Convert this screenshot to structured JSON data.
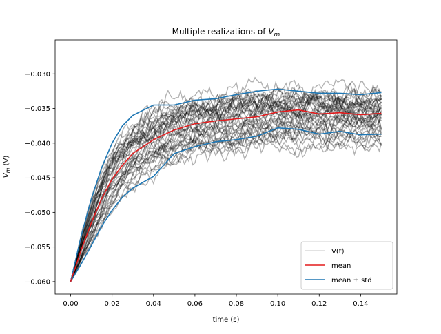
{
  "chart_data": {
    "type": "line",
    "title": "Multiple realizations of V_m",
    "title_parts": {
      "prefix": "Multiple realizations of ",
      "var": "V",
      "sub": "m"
    },
    "xlabel": "time (s)",
    "ylabel": "V_m (V)",
    "ylabel_parts": {
      "var": "V",
      "sub": "m",
      "suffix": " (V)"
    },
    "xlim": [
      -0.0075,
      0.1575
    ],
    "ylim": [
      -0.0618,
      -0.0251
    ],
    "xticks": [
      0.0,
      0.02,
      0.04,
      0.06,
      0.08,
      0.1,
      0.12,
      0.14
    ],
    "xtick_labels": [
      "0.00",
      "0.02",
      "0.04",
      "0.06",
      "0.08",
      "0.10",
      "0.12",
      "0.14"
    ],
    "yticks": [
      -0.06,
      -0.055,
      -0.05,
      -0.045,
      -0.04,
      -0.035,
      -0.03
    ],
    "ytick_labels": [
      "−0.060",
      "−0.055",
      "−0.050",
      "−0.045",
      "−0.040",
      "−0.035",
      "−0.030"
    ],
    "grid": false,
    "legend_position": "lower-right",
    "legend": [
      {
        "label": "V(t)",
        "color": "#000000",
        "alpha": 0.15
      },
      {
        "label": "mean",
        "color": "#e31a1c",
        "alpha": 1
      },
      {
        "label": "mean ± std",
        "color": "#1f77b4",
        "alpha": 1
      }
    ],
    "realizations": {
      "count": 40,
      "color": "#000000",
      "alpha": 0.3,
      "x_range": [
        0.0,
        0.15
      ],
      "start_value": -0.06,
      "level_spread": 0.0035,
      "noise_amplitude": 0.0009
    },
    "series": [
      {
        "name": "mean",
        "color": "#e31a1c",
        "x": [
          0.0,
          0.005,
          0.01,
          0.015,
          0.02,
          0.025,
          0.03,
          0.04,
          0.05,
          0.06,
          0.07,
          0.08,
          0.09,
          0.1,
          0.11,
          0.12,
          0.13,
          0.14,
          0.15
        ],
        "values": [
          -0.06,
          -0.0555,
          -0.0515,
          -0.048,
          -0.0452,
          -0.0432,
          -0.0415,
          -0.0395,
          -0.0381,
          -0.0372,
          -0.0368,
          -0.0365,
          -0.0362,
          -0.0355,
          -0.0352,
          -0.0358,
          -0.0356,
          -0.0359,
          -0.0357
        ]
      },
      {
        "name": "mean + std",
        "color": "#1f77b4",
        "x": [
          0.0,
          0.005,
          0.01,
          0.015,
          0.02,
          0.025,
          0.03,
          0.04,
          0.05,
          0.06,
          0.07,
          0.08,
          0.09,
          0.1,
          0.11,
          0.12,
          0.13,
          0.14,
          0.15
        ],
        "values": [
          -0.06,
          -0.0535,
          -0.048,
          -0.0435,
          -0.04,
          -0.0375,
          -0.036,
          -0.0345,
          -0.0345,
          -0.0338,
          -0.0336,
          -0.033,
          -0.0325,
          -0.0322,
          -0.0325,
          -0.0328,
          -0.0328,
          -0.033,
          -0.0327
        ]
      },
      {
        "name": "mean - std",
        "color": "#1f77b4",
        "x": [
          0.0,
          0.005,
          0.01,
          0.015,
          0.02,
          0.025,
          0.03,
          0.04,
          0.05,
          0.06,
          0.07,
          0.08,
          0.09,
          0.1,
          0.11,
          0.12,
          0.13,
          0.14,
          0.15
        ],
        "values": [
          -0.06,
          -0.0575,
          -0.0548,
          -0.052,
          -0.0497,
          -0.0478,
          -0.0465,
          -0.0448,
          -0.0415,
          -0.0405,
          -0.0398,
          -0.0395,
          -0.039,
          -0.0378,
          -0.038,
          -0.0387,
          -0.0383,
          -0.0388,
          -0.0387
        ]
      }
    ]
  }
}
